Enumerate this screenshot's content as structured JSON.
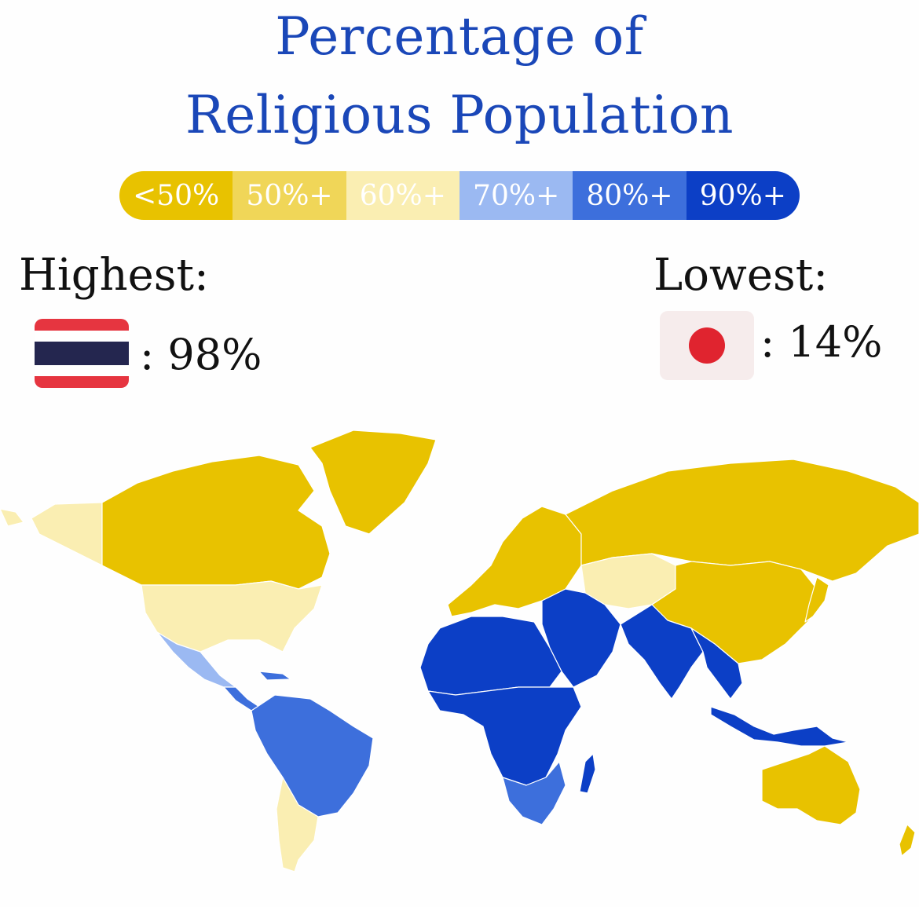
{
  "title": {
    "line1": "Percentage of",
    "line2": "Religious Population"
  },
  "legend": [
    {
      "label": "<50%",
      "color": "#e8c200"
    },
    {
      "label": "50%+",
      "color": "#f0d658"
    },
    {
      "label": "60%+",
      "color": "#faeeb2"
    },
    {
      "label": "70%+",
      "color": "#9bb9f2"
    },
    {
      "label": "80%+",
      "color": "#3d6fdc"
    },
    {
      "label": "90%+",
      "color": "#0c3fc6"
    }
  ],
  "highest": {
    "label": "Highest:",
    "value": ": 98%",
    "flag": "thailand-flag"
  },
  "lowest": {
    "label": "Lowest:",
    "value": ": 14%",
    "flag": "japan-flag"
  },
  "map": {
    "regions": [
      {
        "name": "alaska",
        "color": "#faeeb2"
      },
      {
        "name": "canada",
        "color": "#e8c200"
      },
      {
        "name": "greenland",
        "color": "#e8c200"
      },
      {
        "name": "united-states",
        "color": "#faeeb2"
      },
      {
        "name": "mexico",
        "color": "#9bb9f2"
      },
      {
        "name": "central-america",
        "color": "#3d6fdc"
      },
      {
        "name": "south-america",
        "color": "#3d6fdc"
      },
      {
        "name": "southern-cone",
        "color": "#faeeb2"
      },
      {
        "name": "europe",
        "color": "#e8c200"
      },
      {
        "name": "russia",
        "color": "#e8c200"
      },
      {
        "name": "central-asia",
        "color": "#faeeb2"
      },
      {
        "name": "china",
        "color": "#e8c200"
      },
      {
        "name": "middle-east",
        "color": "#0c3fc6"
      },
      {
        "name": "north-africa",
        "color": "#0c3fc6"
      },
      {
        "name": "central-africa",
        "color": "#0c3fc6"
      },
      {
        "name": "southern-africa",
        "color": "#3d6fdc"
      },
      {
        "name": "madagascar",
        "color": "#0c3fc6"
      },
      {
        "name": "south-asia",
        "color": "#0c3fc6"
      },
      {
        "name": "southeast-asia",
        "color": "#0c3fc6"
      },
      {
        "name": "indonesia",
        "color": "#0c3fc6"
      },
      {
        "name": "japan",
        "color": "#e8c200"
      },
      {
        "name": "australia",
        "color": "#e8c200"
      },
      {
        "name": "new-zealand",
        "color": "#e8c200"
      }
    ]
  }
}
